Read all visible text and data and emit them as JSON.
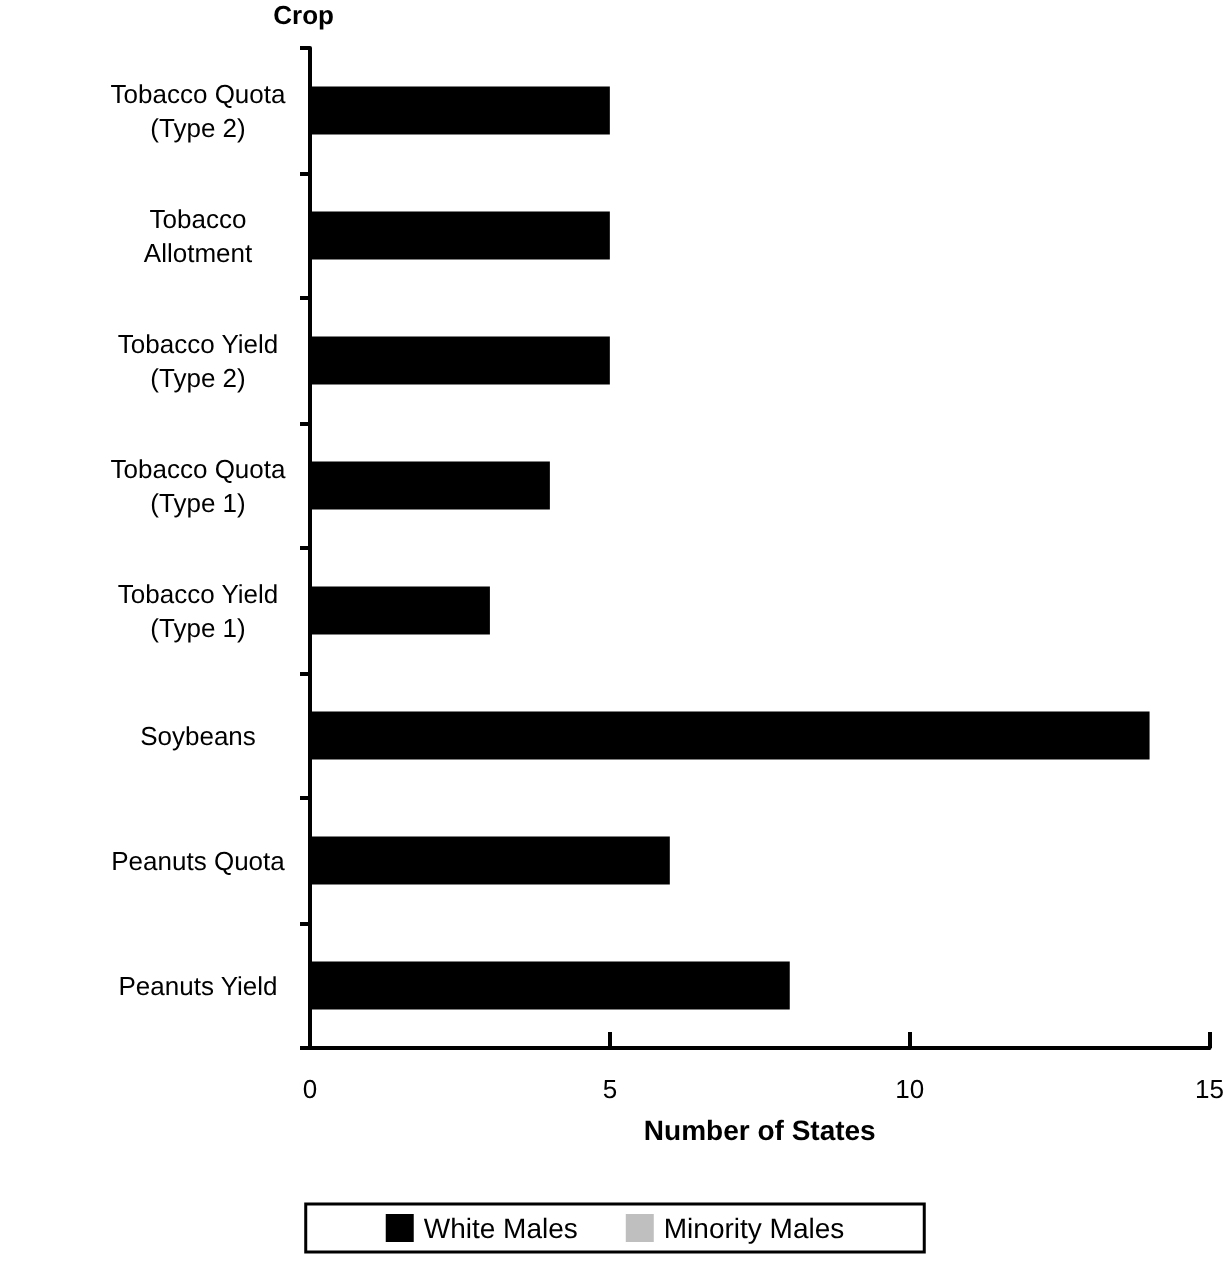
{
  "chart_data": {
    "type": "bar",
    "orientation": "horizontal",
    "ylabel": "Crop",
    "xlabel": "Number of States",
    "categories": [
      "Tobacco Quota\n(Type 2)",
      "Tobacco\nAllotment",
      "Tobacco Yield\n(Type 2)",
      "Tobacco Quota\n(Type 1)",
      "Tobacco Yield\n(Type 1)",
      "Soybeans",
      "Peanuts Quota",
      "Peanuts Yield"
    ],
    "series": [
      {
        "name": "White Males",
        "color": "#000000",
        "values": [
          5,
          5,
          5,
          4,
          3,
          14,
          6,
          8
        ]
      },
      {
        "name": "Minority Males",
        "color": "#bfbfbf",
        "values": [
          0,
          0,
          0,
          0,
          0,
          0,
          0,
          0
        ]
      }
    ],
    "xlim": [
      0,
      15
    ],
    "xticks": [
      0,
      5,
      10,
      15
    ],
    "grid": false,
    "legend": "bottom"
  }
}
